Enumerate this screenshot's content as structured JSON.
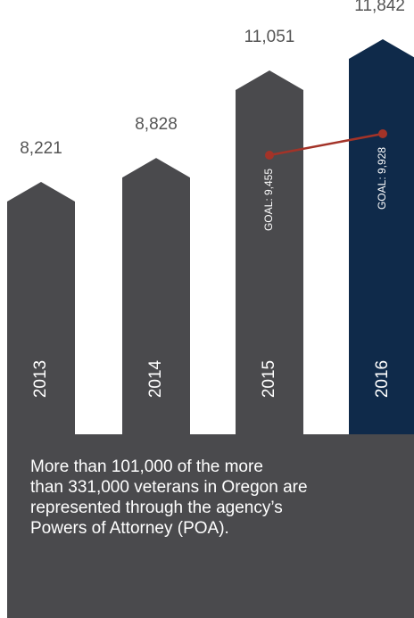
{
  "chart_data": {
    "type": "bar",
    "categories": [
      "2013",
      "2014",
      "2015",
      "2016"
    ],
    "values": [
      8221,
      8828,
      11051,
      11842
    ],
    "value_labels": [
      "8,221",
      "8,828",
      "11,051",
      "11,842"
    ],
    "goal": {
      "categories": [
        "2015",
        "2016"
      ],
      "values": [
        9455,
        9928
      ],
      "labels": [
        "GOAL: 9,455",
        "GOAL: 9,928"
      ]
    },
    "colors": {
      "bar": "#4a4a4d",
      "highlight": "#0f2a4a",
      "goal": "#a33328",
      "value_label": "#555555",
      "category_label": "#ffffff"
    },
    "highlight_category": "2016"
  },
  "caption": {
    "lines": [
      "More than 101,000 of the more",
      "than 331,000 veterans in Oregon are",
      "represented through the agency’s",
      "Powers of Attorney (POA)."
    ]
  }
}
